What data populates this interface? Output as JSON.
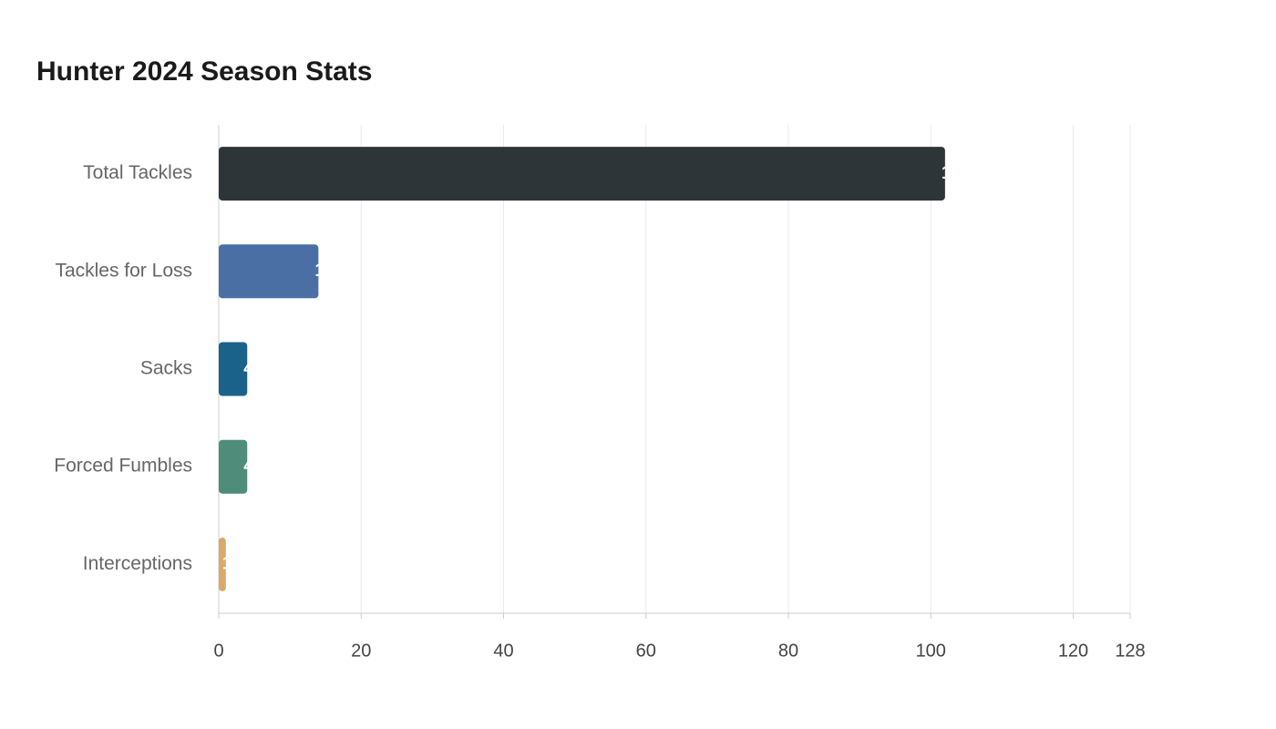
{
  "chart_data": {
    "type": "bar",
    "orientation": "horizontal",
    "title": "Hunter 2024 Season Stats",
    "categories": [
      "Total Tackles",
      "Tackles for Loss",
      "Sacks",
      "Forced Fumbles",
      "Interceptions"
    ],
    "values": [
      102,
      14,
      4,
      4,
      1
    ],
    "colors": [
      "#2e3538",
      "#4a6fa5",
      "#1a628a",
      "#4f8c7a",
      "#d9a96b"
    ],
    "xlim": [
      0,
      128
    ],
    "xticks": [
      0,
      20,
      40,
      60,
      80,
      100,
      120,
      128
    ],
    "grid": true
  }
}
